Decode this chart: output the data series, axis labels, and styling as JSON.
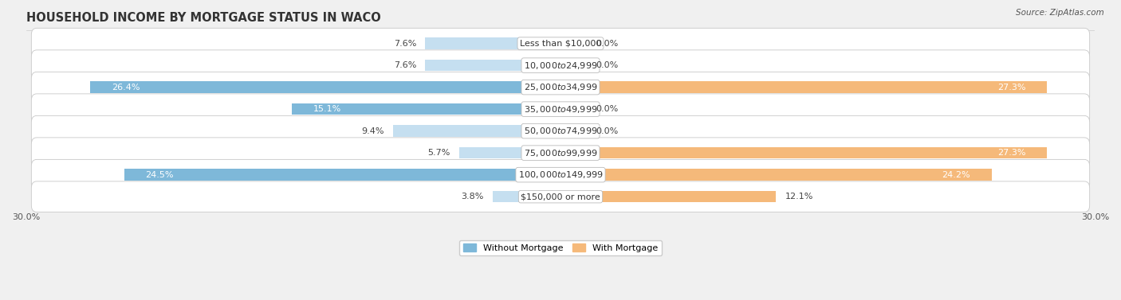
{
  "title": "HOUSEHOLD INCOME BY MORTGAGE STATUS IN WACO",
  "source": "Source: ZipAtlas.com",
  "categories": [
    "Less than $10,000",
    "$10,000 to $24,999",
    "$25,000 to $34,999",
    "$35,000 to $49,999",
    "$50,000 to $74,999",
    "$75,000 to $99,999",
    "$100,000 to $149,999",
    "$150,000 or more"
  ],
  "without_mortgage": [
    7.6,
    7.6,
    26.4,
    15.1,
    9.4,
    5.7,
    24.5,
    3.8
  ],
  "with_mortgage": [
    0.0,
    0.0,
    27.3,
    0.0,
    0.0,
    27.3,
    24.2,
    12.1
  ],
  "color_without": "#7eb8d9",
  "color_with": "#f5b97a",
  "color_without_light": "#c5dff0",
  "color_with_light": "#fad9b0",
  "xlim": 30.0,
  "title_fontsize": 10.5,
  "label_fontsize": 8.0,
  "tick_fontsize": 8.0,
  "source_fontsize": 7.5,
  "legend_fontsize": 8.0
}
